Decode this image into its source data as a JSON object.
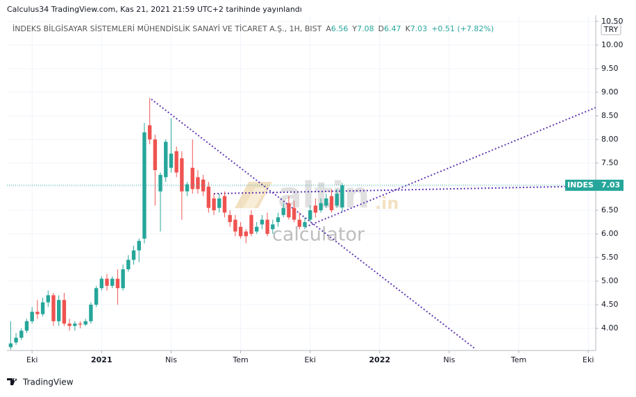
{
  "header": {
    "published": "Calculus34 TradingView.com, Kas 21, 2021 21:59 UTC+2 tarihinde yayınlandı",
    "symbol_title": "İNDEKS BİLGİSAYAR SİSTEMLERİ MÜHENDİSLİK SANAYİ VE TİCARET A.Ş., 1H, BIST",
    "ohlc_labels": [
      "A",
      "Y",
      "D",
      "K"
    ],
    "change": "+0.51 (+7.82%)",
    "currency": "TRY",
    "ticker": "INDES"
  },
  "watermark": {
    "brand": "altin",
    "domain": ".in",
    "sub": "calculator"
  },
  "footer": {
    "brand": "TradingView"
  },
  "chart_data": {
    "type": "candlestick",
    "x": [
      -4,
      -3,
      -2,
      -1,
      0,
      1,
      2,
      3,
      4,
      5,
      6,
      7,
      8,
      9,
      10,
      11,
      12,
      13,
      14,
      15,
      16,
      17,
      18,
      19,
      20,
      21,
      22,
      23,
      24,
      25,
      26,
      27,
      28,
      29,
      30,
      31,
      32,
      33,
      34,
      35,
      36,
      37,
      38,
      39,
      40,
      41,
      42,
      43,
      44,
      45,
      46,
      47,
      48,
      49,
      50,
      51,
      52,
      53,
      54,
      55,
      56,
      57,
      58
    ],
    "open": [
      3.6,
      3.7,
      3.8,
      3.95,
      4.15,
      4.35,
      4.3,
      4.55,
      4.7,
      4.15,
      4.6,
      4.1,
      4.05,
      4.1,
      4.08,
      4.15,
      4.5,
      4.85,
      5.05,
      4.9,
      5.05,
      4.85,
      5.25,
      5.45,
      5.65,
      5.9,
      8.3,
      8.0,
      6.9,
      7.2,
      7.4,
      7.75,
      7.6,
      6.9,
      7.4,
      7.2,
      7.15,
      7.0,
      6.75,
      6.55,
      6.8,
      6.4,
      6.3,
      6.15,
      6.05,
      6.4,
      6.05,
      6.2,
      6.3,
      6.1,
      6.25,
      6.4,
      6.65,
      6.55,
      6.3,
      6.15,
      6.3,
      6.6,
      6.5,
      6.6,
      6.8,
      6.6,
      6.56
    ],
    "high": [
      4.15,
      3.9,
      4.0,
      4.2,
      4.45,
      4.6,
      4.65,
      4.8,
      4.75,
      4.7,
      4.75,
      4.2,
      4.15,
      4.15,
      4.2,
      4.55,
      4.9,
      5.1,
      5.15,
      5.1,
      5.25,
      5.35,
      5.55,
      5.75,
      5.9,
      8.35,
      8.88,
      8.1,
      7.3,
      8.0,
      8.45,
      7.85,
      7.75,
      7.1,
      8.0,
      7.35,
      7.25,
      7.1,
      6.85,
      6.85,
      6.9,
      6.5,
      6.4,
      6.25,
      6.1,
      6.5,
      6.25,
      6.4,
      6.45,
      6.3,
      6.45,
      6.65,
      6.8,
      6.7,
      6.45,
      6.35,
      6.6,
      6.75,
      6.75,
      6.85,
      6.95,
      6.95,
      7.08
    ],
    "low": [
      3.55,
      3.65,
      3.75,
      3.9,
      4.1,
      4.2,
      4.25,
      4.45,
      4.05,
      4.05,
      4.05,
      3.95,
      3.95,
      4.0,
      4.05,
      4.1,
      4.45,
      4.8,
      4.8,
      4.85,
      4.5,
      4.8,
      5.2,
      5.35,
      5.4,
      5.8,
      7.9,
      6.6,
      6.05,
      7.1,
      7.3,
      7.2,
      6.3,
      6.8,
      6.85,
      6.85,
      6.8,
      6.45,
      6.4,
      6.45,
      6.35,
      6.15,
      5.95,
      5.9,
      5.8,
      5.95,
      6.0,
      6.1,
      5.95,
      6.0,
      6.15,
      6.35,
      6.3,
      6.25,
      6.1,
      6.1,
      6.25,
      6.35,
      6.45,
      6.55,
      6.45,
      6.55,
      6.47
    ],
    "close": [
      3.68,
      3.8,
      3.95,
      4.15,
      4.35,
      4.3,
      4.55,
      4.7,
      4.15,
      4.6,
      4.1,
      4.05,
      4.1,
      4.08,
      4.15,
      4.5,
      4.85,
      5.05,
      4.9,
      5.05,
      4.85,
      5.25,
      5.45,
      5.65,
      5.85,
      8.15,
      8.0,
      7.35,
      7.25,
      7.95,
      7.7,
      7.3,
      6.9,
      7.05,
      6.95,
      6.95,
      6.9,
      6.55,
      6.5,
      6.75,
      6.45,
      6.25,
      6.05,
      5.95,
      5.95,
      6.0,
      6.15,
      6.3,
      6.0,
      6.2,
      6.35,
      6.55,
      6.35,
      6.3,
      6.15,
      6.25,
      6.5,
      6.45,
      6.65,
      6.75,
      6.5,
      6.85,
      7.03
    ],
    "up_color": "#26a69a",
    "down_color": "#ef5350",
    "last_line_color": "#26a69a",
    "xlim": [
      -4.7,
      105.4
    ],
    "xticks": [
      {
        "value": 0,
        "label": "Eki"
      },
      {
        "value": 13,
        "label": "2021"
      },
      {
        "value": 26,
        "label": "Nis"
      },
      {
        "value": 39,
        "label": "Tem"
      },
      {
        "value": 52,
        "label": "Eki"
      },
      {
        "value": 65,
        "label": "2022"
      },
      {
        "value": 78,
        "label": "Nis"
      },
      {
        "value": 91,
        "label": "Tem"
      },
      {
        "value": 104,
        "label": "Eki"
      }
    ],
    "ylim": [
      3.53,
      10.63
    ],
    "yticks": [
      {
        "value": 4,
        "label": "4.00"
      },
      {
        "value": 4.5,
        "label": "4.50"
      },
      {
        "value": 5,
        "label": "5.00"
      },
      {
        "value": 5.5,
        "label": "5.50"
      },
      {
        "value": 6,
        "label": "6.00"
      },
      {
        "value": 6.5,
        "label": "6.50"
      },
      {
        "value": 7,
        "label": "7.00"
      },
      {
        "value": 7.5,
        "label": "7.50"
      },
      {
        "value": 8,
        "label": "8.00"
      },
      {
        "value": 8.5,
        "label": "8.50"
      },
      {
        "value": 9,
        "label": "9.00"
      },
      {
        "value": 9.5,
        "label": "9.50"
      },
      {
        "value": 10,
        "label": "10.00"
      },
      {
        "value": 10.5,
        "label": "10.50"
      }
    ],
    "grid": true
  }
}
